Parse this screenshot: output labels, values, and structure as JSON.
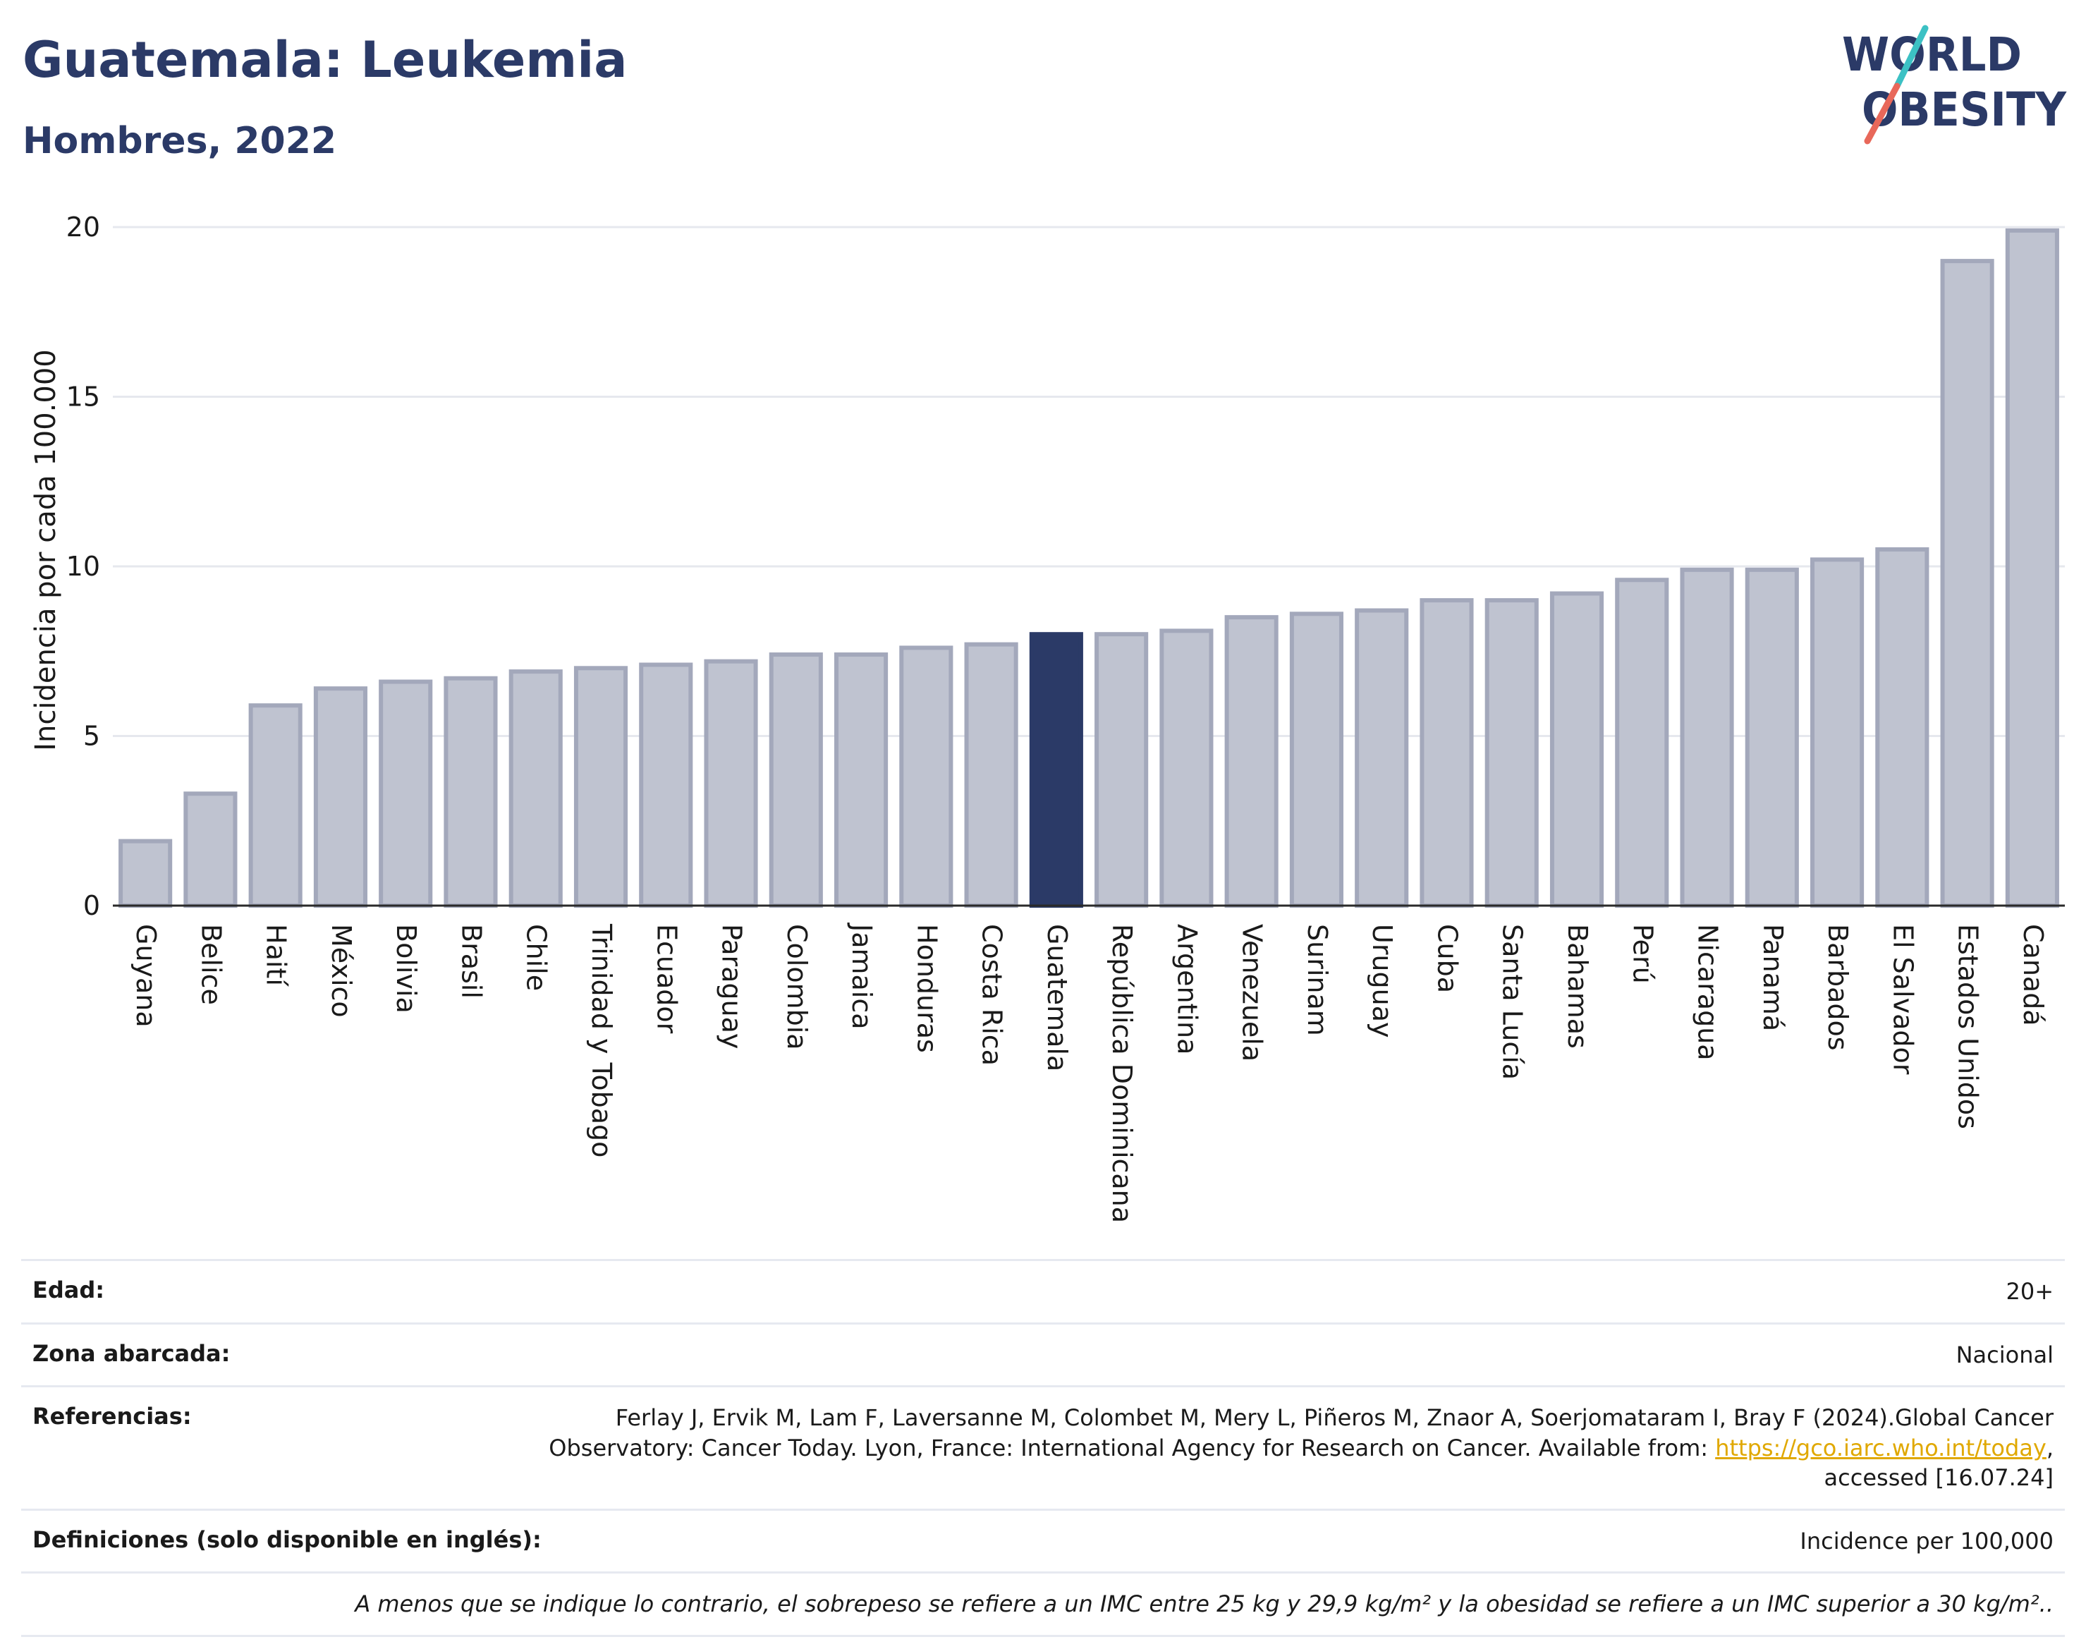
{
  "header": {
    "title": "Guatemala: Leukemia",
    "subtitle": "Hombres, 2022"
  },
  "logo": {
    "line1": "WORLD",
    "line2": "OBESITY"
  },
  "colors": {
    "highlight_bar": "#2b3a67",
    "default_bar_fill": "#bfc3d0",
    "default_bar_stroke": "#a3a8bb",
    "title": "#2b3a67",
    "link": "#e0a800",
    "logo_slash_top": "#3cc1c4",
    "logo_slash_bottom": "#e8685a"
  },
  "chart_data": {
    "type": "bar",
    "title": "",
    "xlabel": "",
    "ylabel": "Incidencia por cada 100.000",
    "ylim": [
      0,
      20
    ],
    "yticks": [
      0,
      5,
      10,
      15,
      20
    ],
    "grid": true,
    "highlight": "Guatemala",
    "categories": [
      "Guyana",
      "Belice",
      "Haití",
      "México",
      "Bolivia",
      "Brasil",
      "Chile",
      "Trinidad y Tobago",
      "Ecuador",
      "Paraguay",
      "Colombia",
      "Jamaica",
      "Honduras",
      "Costa Rica",
      "Guatemala",
      "República Dominicana",
      "Argentina",
      "Venezuela",
      "Surinam",
      "Uruguay",
      "Cuba",
      "Santa Lucía",
      "Bahamas",
      "Perú",
      "Nicaragua",
      "Panamá",
      "Barbados",
      "El Salvador",
      "Estados Unidos",
      "Canadá"
    ],
    "values": [
      1.9,
      3.3,
      5.9,
      6.4,
      6.6,
      6.7,
      6.9,
      7.0,
      7.1,
      7.2,
      7.4,
      7.4,
      7.6,
      7.7,
      8.0,
      8.0,
      8.1,
      8.5,
      8.6,
      8.7,
      9.0,
      9.0,
      9.2,
      9.6,
      9.9,
      9.9,
      10.2,
      10.5,
      19.0,
      19.9
    ]
  },
  "meta": {
    "age_label": "Edad:",
    "age_value": "20+",
    "zone_label": "Zona abarcada:",
    "zone_value": "Nacional",
    "refs_label": "Referencias:",
    "refs_line1": "Ferlay J, Ervik M, Lam F, Laversanne M, Colombet M, Mery L, Piñeros M, Znaor A, Soerjomataram I, Bray F (2024).Global Cancer",
    "refs_line2_pre": "Observatory: Cancer Today. Lyon, France: International Agency for Research on Cancer. Available from: ",
    "refs_link": "https://gco.iarc.who.int/today",
    "refs_line2_post": ",",
    "refs_line3": "accessed [16.07.24]",
    "defs_label": "Definiciones (solo disponible en inglés):",
    "defs_value": "Incidence per 100,000",
    "note": "A menos que se indique lo contrario, el sobrepeso se refiere a un IMC entre 25 kg y 29,9 kg/m² y la obesidad se refiere a un IMC superior a 30 kg/m².."
  }
}
